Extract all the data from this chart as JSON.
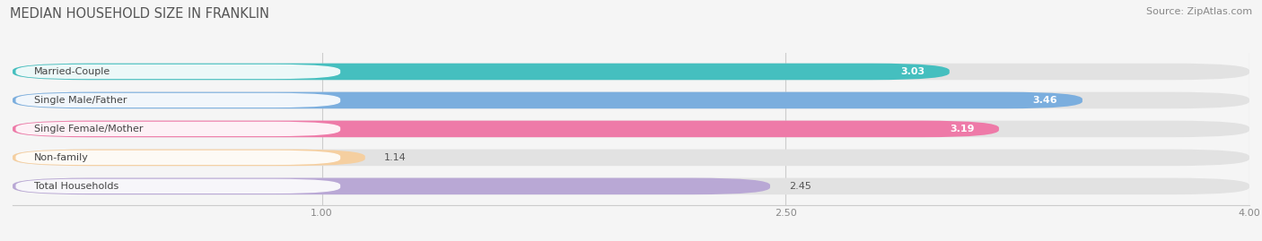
{
  "title": "MEDIAN HOUSEHOLD SIZE IN FRANKLIN",
  "source": "Source: ZipAtlas.com",
  "categories": [
    "Married-Couple",
    "Single Male/Father",
    "Single Female/Mother",
    "Non-family",
    "Total Households"
  ],
  "values": [
    3.03,
    3.46,
    3.19,
    1.14,
    2.45
  ],
  "bar_colors": [
    "#45BFBF",
    "#7BAEDE",
    "#EE7AA8",
    "#F5CFA0",
    "#B9A8D5"
  ],
  "label_colors": [
    "white",
    "white",
    "white",
    "dark",
    "dark"
  ],
  "xlim_min": 0.0,
  "xlim_max": 4.0,
  "xticks": [
    1.0,
    2.5,
    4.0
  ],
  "background_color": "#f5f5f5",
  "bar_bg_color": "#e2e2e2",
  "label_white_bg": "#ffffff",
  "title_fontsize": 10.5,
  "source_fontsize": 8,
  "label_fontsize": 8,
  "value_fontsize": 8
}
